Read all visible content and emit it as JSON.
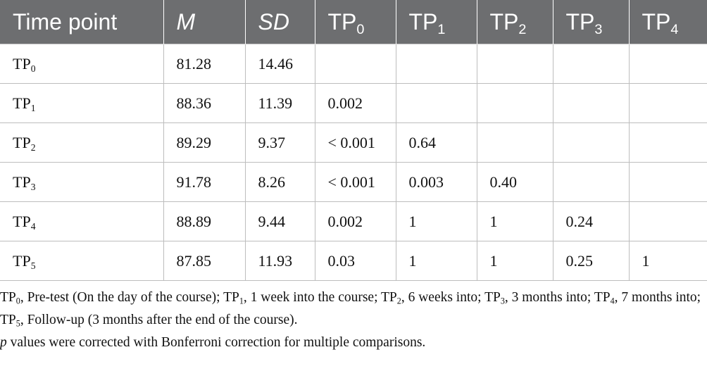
{
  "table": {
    "header": [
      {
        "text": "Time point"
      },
      {
        "text": "M",
        "italic": true
      },
      {
        "text": "SD",
        "italic": true
      },
      {
        "text": "TP",
        "sub": "0"
      },
      {
        "text": "TP",
        "sub": "1"
      },
      {
        "text": "TP",
        "sub": "2"
      },
      {
        "text": "TP",
        "sub": "3"
      },
      {
        "text": "TP",
        "sub": "4"
      }
    ],
    "rows": [
      {
        "label": {
          "text": "TP",
          "sub": "0"
        },
        "cells": [
          "81.28",
          "14.46",
          null,
          null,
          null,
          null,
          null
        ]
      },
      {
        "label": {
          "text": "TP",
          "sub": "1"
        },
        "cells": [
          "88.36",
          "11.39",
          "0.002",
          null,
          null,
          null,
          null
        ]
      },
      {
        "label": {
          "text": "TP",
          "sub": "2"
        },
        "cells": [
          "89.29",
          "9.37",
          "< 0.001",
          "0.64",
          null,
          null,
          null
        ]
      },
      {
        "label": {
          "text": "TP",
          "sub": "3"
        },
        "cells": [
          "91.78",
          "8.26",
          "< 0.001",
          "0.003",
          "0.40",
          null,
          null
        ]
      },
      {
        "label": {
          "text": "TP",
          "sub": "4"
        },
        "cells": [
          "88.89",
          "9.44",
          "0.002",
          "1",
          "1",
          "0.24",
          null
        ]
      },
      {
        "label": {
          "text": "TP",
          "sub": "5"
        },
        "cells": [
          "87.85",
          "11.93",
          "0.03",
          "1",
          "1",
          "0.25",
          "1"
        ]
      }
    ]
  },
  "footnote": [
    [
      {
        "text": "TP"
      },
      {
        "sub": "0"
      },
      {
        "text": ", Pre-test (On the day of the course); TP"
      },
      {
        "sub": "1"
      },
      {
        "text": ", 1 week into the course; TP"
      },
      {
        "sub": "2"
      },
      {
        "text": ", 6 weeks into; TP"
      },
      {
        "sub": "3"
      },
      {
        "text": ", 3 months into; TP"
      },
      {
        "sub": "4"
      },
      {
        "text": ", 7 months into; TP"
      },
      {
        "sub": "5"
      },
      {
        "text": ", Follow-up (3 months after the end of the course)."
      }
    ],
    [
      {
        "italic": "p"
      },
      {
        "text": " values were corrected with Bonferroni correction for multiple comparisons."
      }
    ]
  ]
}
